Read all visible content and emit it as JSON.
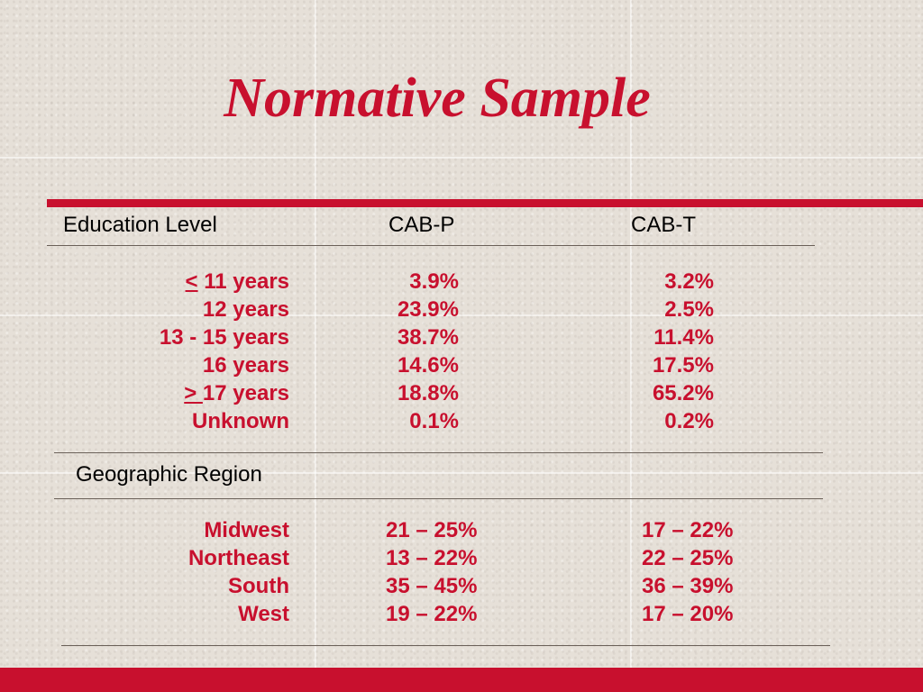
{
  "slide": {
    "title": "Normative Sample",
    "accent_color": "#c8102e"
  },
  "education": {
    "header_label": "Education Level",
    "header_cabp": "CAB-P",
    "header_cabt": "CAB-T",
    "rows": [
      {
        "prefix": "<",
        "label": " 11 years",
        "cabp": "3.9%",
        "cabt": "3.2%"
      },
      {
        "prefix": "",
        "label": "12 years",
        "cabp": "23.9%",
        "cabt": "2.5%"
      },
      {
        "prefix": "",
        "label": "13 - 15 years",
        "cabp": "38.7%",
        "cabt": "11.4%"
      },
      {
        "prefix": "",
        "label": "16 years",
        "cabp": "14.6%",
        "cabt": "17.5%"
      },
      {
        "prefix": "> ",
        "label": "17 years",
        "cabp": "18.8%",
        "cabt": "65.2%"
      },
      {
        "prefix": "",
        "label": "Unknown",
        "cabp": "0.1%",
        "cabt": "0.2%"
      }
    ]
  },
  "region": {
    "header_label": "Geographic Region",
    "rows": [
      {
        "label": "Midwest",
        "cabp": "21 – 25%",
        "cabt": "17 – 22%"
      },
      {
        "label": "Northeast",
        "cabp": "13 – 22%",
        "cabt": "22 – 25%"
      },
      {
        "label": "South",
        "cabp": "35 – 45%",
        "cabt": "36 – 39%"
      },
      {
        "label": "West",
        "cabp": "19 – 22%",
        "cabt": "17 – 20%"
      }
    ]
  }
}
